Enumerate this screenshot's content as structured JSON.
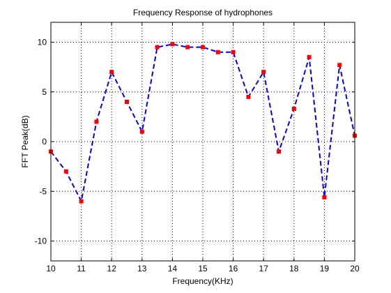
{
  "chart_data": {
    "type": "line",
    "title": "Frequency Response of hydrophones",
    "xlabel": "Frequency(KHz)",
    "ylabel": "FFT Peak(dB)",
    "xlim": [
      10,
      20
    ],
    "ylim": [
      -12,
      12
    ],
    "grid": true,
    "legend": "none",
    "x_ticks": [
      10,
      11,
      12,
      13,
      14,
      15,
      16,
      17,
      18,
      19,
      20
    ],
    "x_tick_labels": [
      "10",
      "11",
      "12",
      "13",
      "14",
      "15",
      "16",
      "17",
      "18",
      "19",
      "20"
    ],
    "y_ticks": [
      -10,
      -5,
      0,
      5,
      10
    ],
    "y_tick_labels": [
      "-10",
      "-5",
      "0",
      "5",
      "10"
    ],
    "series": [
      {
        "line_color": "#0000ff",
        "line_style": "dashed",
        "marker_color": "#ff0000",
        "marker": "square",
        "x": [
          10,
          10.5,
          11,
          11.5,
          12,
          12.5,
          13,
          13.5,
          14,
          14.5,
          15,
          15.5,
          16,
          16.5,
          17,
          17.5,
          18,
          18.5,
          19,
          19.5,
          20
        ],
        "y": [
          -1,
          -3,
          -6,
          2,
          7,
          4,
          1,
          9.5,
          9.8,
          9.5,
          9.5,
          9,
          9,
          4.5,
          7,
          -1,
          3.3,
          8.5,
          -5.6,
          7.7,
          0.6
        ]
      }
    ]
  }
}
